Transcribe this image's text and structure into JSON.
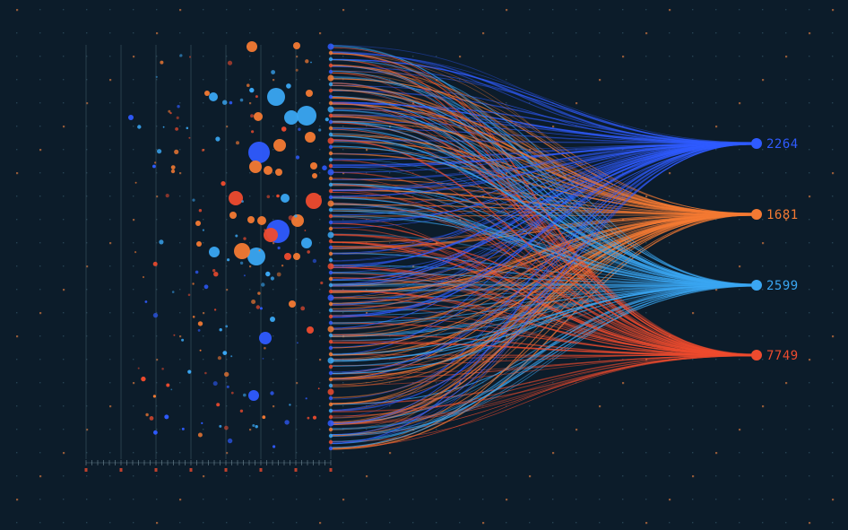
{
  "chart_data": {
    "type": "scatter",
    "description_type": "bubble-scatter-with-flow-lines",
    "colors": {
      "background": "#0c1c2a",
      "grid_dot_light": "#3d6275",
      "grid_dot_orange": "#b2683c",
      "axis_line": "#3b5361",
      "series": [
        "#2f5bff",
        "#f47a33",
        "#3aa6f2",
        "#ee4b2e"
      ]
    },
    "targets": [
      {
        "id": "t1",
        "value": "2264",
        "color": "#2f5bff"
      },
      {
        "id": "t2",
        "value": "1681",
        "color": "#f47a33"
      },
      {
        "id": "t3",
        "value": "2599",
        "color": "#3aa6f2"
      },
      {
        "id": "t4",
        "value": "7749",
        "color": "#ee4b2e"
      }
    ],
    "axis": {
      "tick_labels": [
        "",
        "",
        "",
        "",
        "",
        "",
        "",
        ""
      ]
    }
  }
}
